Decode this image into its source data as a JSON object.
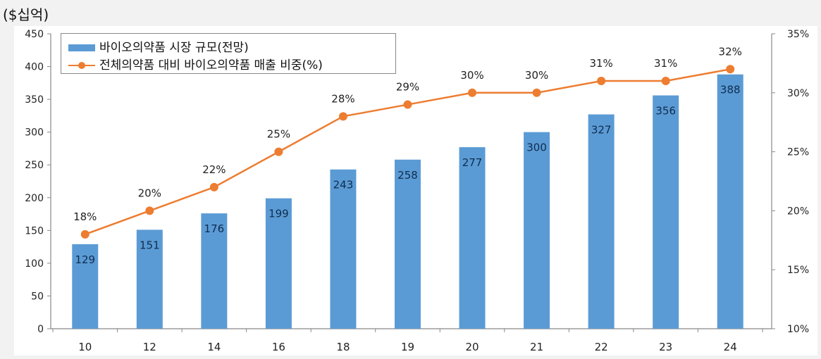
{
  "unit_label": "($십억)",
  "legend": {
    "bar_label": "바이오의약품 시장 규모(전망)",
    "line_label": "전체의약품 대비 바이오의약품 매출 비중(%)"
  },
  "colors": {
    "bar": "#5b9bd5",
    "line": "#ed7d31",
    "plot_bg": "#ffffff",
    "page_bg": "#f2f2f2"
  },
  "chart_data": {
    "type": "bar+line",
    "title": "",
    "unit": "($십억)",
    "xlabel": "",
    "categories": [
      "10",
      "12",
      "14",
      "16",
      "18",
      "19",
      "20",
      "21",
      "22",
      "23",
      "24"
    ],
    "series": [
      {
        "name": "바이오의약품 시장 규모(전망)",
        "type": "bar",
        "axis": "left",
        "values": [
          129,
          151,
          176,
          199,
          243,
          258,
          277,
          300,
          327,
          356,
          388
        ]
      },
      {
        "name": "전체의약품 대비 바이오의약품 매출 비중(%)",
        "type": "line",
        "axis": "right",
        "values": [
          18,
          20,
          22,
          25,
          28,
          29,
          30,
          30,
          31,
          31,
          32
        ],
        "labels": [
          "18%",
          "20%",
          "22%",
          "25%",
          "28%",
          "29%",
          "30%",
          "30%",
          "31%",
          "31%",
          "32%"
        ]
      }
    ],
    "left_axis": {
      "ylim": [
        0,
        450
      ],
      "ticks": [
        "0",
        "50",
        "100",
        "150",
        "200",
        "250",
        "300",
        "350",
        "400",
        "450"
      ]
    },
    "right_axis": {
      "ylim": [
        10,
        35
      ],
      "ticks": [
        "10%",
        "15%",
        "20%",
        "25%",
        "30%",
        "35%"
      ]
    },
    "grid": false,
    "legend_position": "top-left"
  }
}
